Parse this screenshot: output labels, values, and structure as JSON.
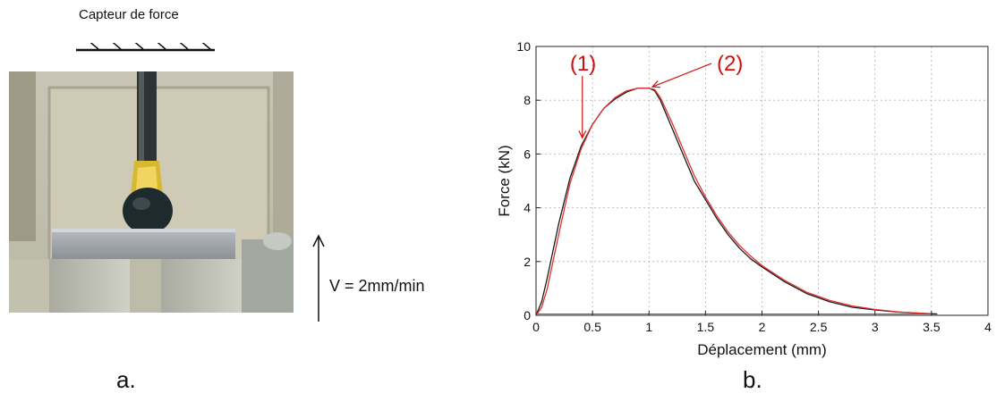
{
  "panel_a": {
    "sensor_label": "Capteur de force",
    "velocity_label": "V = 2mm/min",
    "caption": "a."
  },
  "panel_b": {
    "caption": "b."
  },
  "colors": {
    "curve_black": "#1a1a1a",
    "curve_red": "#e03030",
    "annotation": "#d01010",
    "grid": "#b0b0b0"
  },
  "chart_data": {
    "type": "line",
    "title": "",
    "xlabel": "Déplacement (mm)",
    "ylabel": "Force (kN)",
    "xlim": [
      0,
      4
    ],
    "ylim": [
      0,
      10
    ],
    "xticks": [
      0,
      0.5,
      1,
      1.5,
      2,
      2.5,
      3,
      3.5,
      4
    ],
    "xtick_labels": [
      "0",
      "0.5",
      "1",
      "1.5",
      "2",
      "2.5",
      "3",
      "3.5",
      "4"
    ],
    "yticks": [
      0,
      2,
      4,
      6,
      8,
      10
    ],
    "ytick_labels": [
      "0",
      "2",
      "4",
      "6",
      "8",
      "10"
    ],
    "grid": true,
    "series": [
      {
        "color": "#1a1a1a",
        "x": [
          0,
          0.05,
          0.1,
          0.2,
          0.3,
          0.4,
          0.5,
          0.6,
          0.7,
          0.8,
          0.9,
          1.0,
          1.05,
          1.1,
          1.2,
          1.3,
          1.4,
          1.5,
          1.6,
          1.7,
          1.8,
          1.9,
          2.0,
          2.2,
          2.4,
          2.6,
          2.8,
          3.0,
          3.2,
          3.4,
          3.55
        ],
        "y": [
          0,
          0.5,
          1.4,
          3.4,
          5.1,
          6.3,
          7.1,
          7.7,
          8.05,
          8.3,
          8.45,
          8.45,
          8.35,
          8.0,
          7.0,
          6.0,
          5.0,
          4.3,
          3.6,
          3.0,
          2.5,
          2.1,
          1.8,
          1.25,
          0.8,
          0.5,
          0.3,
          0.2,
          0.12,
          0.08,
          0.05
        ]
      },
      {
        "color": "#e03030",
        "x": [
          0,
          0.05,
          0.1,
          0.2,
          0.3,
          0.4,
          0.5,
          0.6,
          0.7,
          0.8,
          0.9,
          1.0,
          1.05,
          1.1,
          1.2,
          1.3,
          1.4,
          1.5,
          1.6,
          1.7,
          1.8,
          1.9,
          2.0,
          2.2,
          2.4,
          2.6,
          2.8,
          3.0,
          3.2,
          3.4,
          3.5
        ],
        "y": [
          0,
          0.3,
          1.0,
          3.0,
          4.9,
          6.2,
          7.1,
          7.7,
          8.1,
          8.35,
          8.45,
          8.45,
          8.4,
          8.1,
          7.2,
          6.2,
          5.2,
          4.4,
          3.7,
          3.1,
          2.6,
          2.2,
          1.85,
          1.3,
          0.85,
          0.55,
          0.35,
          0.22,
          0.13,
          0.08,
          0.05
        ]
      }
    ],
    "annotations": [
      {
        "label": "(1)",
        "text_x": 0.3,
        "text_y": 9.1,
        "arrow_to_x": 0.41,
        "arrow_to_y": 6.6
      },
      {
        "label": "(2)",
        "text_x": 1.6,
        "text_y": 9.1,
        "arrow_to_x": 1.03,
        "arrow_to_y": 8.5
      }
    ]
  }
}
